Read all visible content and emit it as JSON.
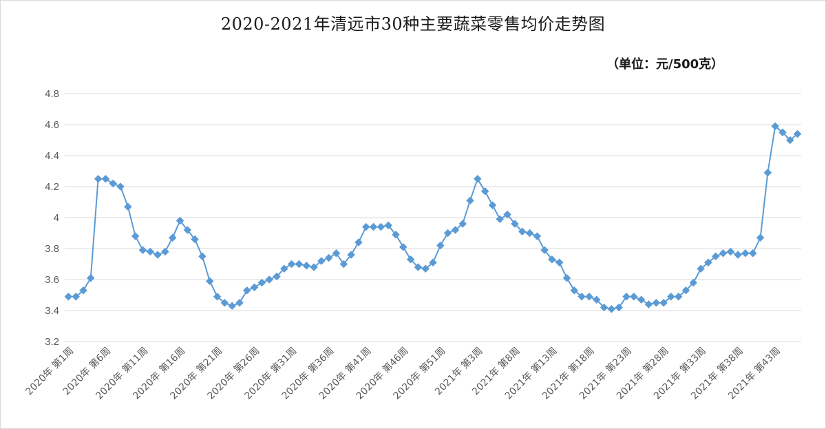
{
  "chart_data": {
    "type": "line",
    "title": "2020-2021年清远市30种主要蔬菜零售均价走势图",
    "unit_label": "（单位：元/500克）",
    "xlabel": "",
    "ylabel": "",
    "ylim": [
      3.2,
      4.8
    ],
    "yticks": [
      "3.2",
      "3.4",
      "3.6",
      "3.8",
      "4",
      "4.2",
      "4.4",
      "4.6",
      "4.8"
    ],
    "grid": true,
    "legend": "none",
    "color": "#5b9bd5",
    "x_tick_labels": [
      "2020年 第1周",
      "2020年 第6周",
      "2020年 第11周",
      "2020年 第16周",
      "2020年 第21周",
      "2020年 第26周",
      "2020年 第31周",
      "2020年 第36周",
      "2020年 第41周",
      "2020年 第46周",
      "2020年 第51周",
      "2021年 第3周",
      "2021年 第8周",
      "2021年 第13周",
      "2021年 第18周",
      "2021年 第23周",
      "2021年 第28周",
      "2021年 第33周",
      "2021年 第38周",
      "2021年 第43周"
    ],
    "values": [
      3.49,
      3.49,
      3.53,
      3.61,
      4.25,
      4.25,
      4.22,
      4.2,
      4.07,
      3.88,
      3.79,
      3.78,
      3.76,
      3.78,
      3.87,
      3.98,
      3.92,
      3.86,
      3.75,
      3.59,
      3.49,
      3.45,
      3.43,
      3.45,
      3.53,
      3.55,
      3.58,
      3.6,
      3.62,
      3.67,
      3.7,
      3.7,
      3.69,
      3.68,
      3.72,
      3.74,
      3.77,
      3.7,
      3.76,
      3.84,
      3.94,
      3.94,
      3.94,
      3.95,
      3.89,
      3.81,
      3.73,
      3.68,
      3.67,
      3.71,
      3.82,
      3.9,
      3.92,
      3.96,
      4.11,
      4.25,
      4.17,
      4.08,
      3.99,
      4.02,
      3.96,
      3.91,
      3.9,
      3.88,
      3.79,
      3.73,
      3.71,
      3.61,
      3.53,
      3.49,
      3.49,
      3.47,
      3.42,
      3.41,
      3.42,
      3.49,
      3.49,
      3.47,
      3.44,
      3.45,
      3.45,
      3.49,
      3.49,
      3.53,
      3.58,
      3.67,
      3.71,
      3.75,
      3.77,
      3.78,
      3.76,
      3.77,
      3.77,
      3.87,
      4.29,
      4.59,
      4.55,
      4.5,
      4.54
    ]
  }
}
